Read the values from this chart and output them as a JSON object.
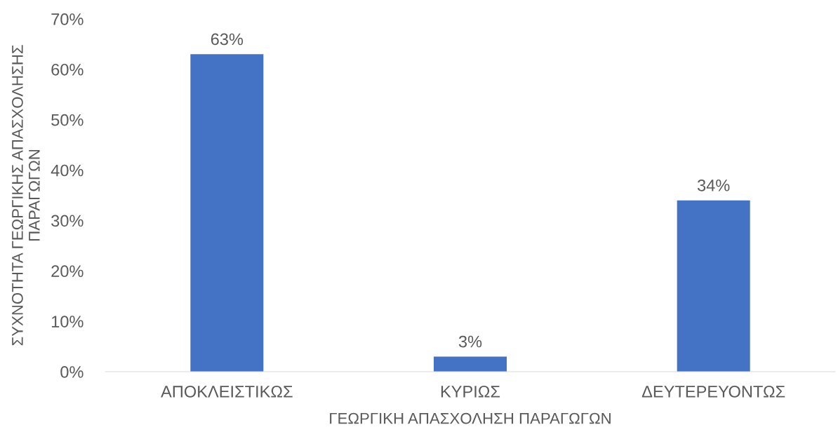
{
  "chart_data": {
    "type": "bar",
    "xlabel": "ΓΕΩΡΓΙΚΗ ΑΠΑΣΧΟΛΗΣΗ ΠΑΡΑΓΩΓΩΝ",
    "ylabel": "ΣΥΧΝΟΤΗΤΑ ΓΕΩΡΓΙΚΗΣ ΑΠΑΣΧΟΛΗΣΗΣ\nΠΑΡΑΓΩΓΩΝ",
    "categories": [
      "ΑΠΟΚΛΕΙΣΤΙΚΩΣ",
      "ΚΥΡΙΩΣ",
      "ΔΕΥΤΕΡΕΥΟΝΤΩΣ"
    ],
    "values": [
      63,
      3,
      34
    ],
    "value_labels": [
      "63%",
      "3%",
      "34%"
    ],
    "color": "#4472c4",
    "ylim": [
      0,
      70
    ],
    "yticks": [
      {
        "value": 0,
        "label": "0%"
      },
      {
        "value": 10,
        "label": "10%"
      },
      {
        "value": 20,
        "label": "20%"
      },
      {
        "value": 30,
        "label": "30%"
      },
      {
        "value": 40,
        "label": "40%"
      },
      {
        "value": 50,
        "label": "50%"
      },
      {
        "value": 60,
        "label": "60%"
      },
      {
        "value": 70,
        "label": "70%"
      }
    ],
    "grid": false
  }
}
